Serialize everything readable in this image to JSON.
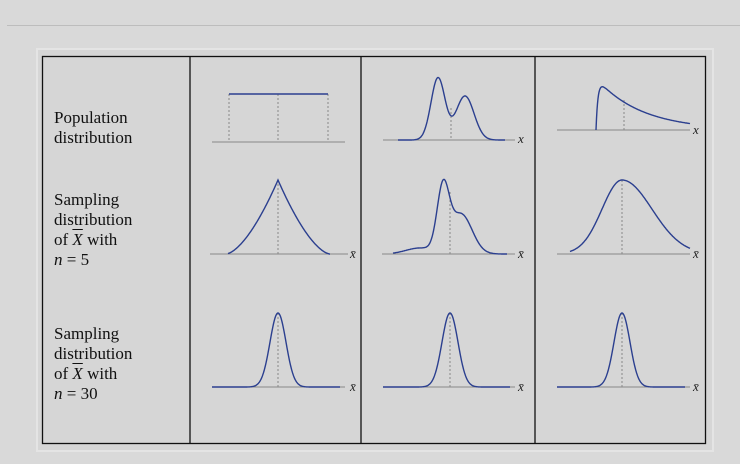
{
  "rows": [
    {
      "label_lines": [
        "Population",
        "distribution"
      ]
    },
    {
      "label_lines": [
        "Sampling",
        "distribution"
      ],
      "of": "of ",
      "xbar": "X",
      "with": " with",
      "n_var": "n",
      "n_eq": " = 5"
    },
    {
      "label_lines": [
        "Sampling",
        "distribution"
      ],
      "of": "of ",
      "xbar": "X",
      "with": " with",
      "n_var": "n",
      "n_eq": " = 30"
    }
  ],
  "axis_labels": {
    "population": "x",
    "sample_mean": "x̄"
  },
  "colors": {
    "curve": "#2b3f8f",
    "axis": "#888888",
    "frame": "#111111"
  }
}
